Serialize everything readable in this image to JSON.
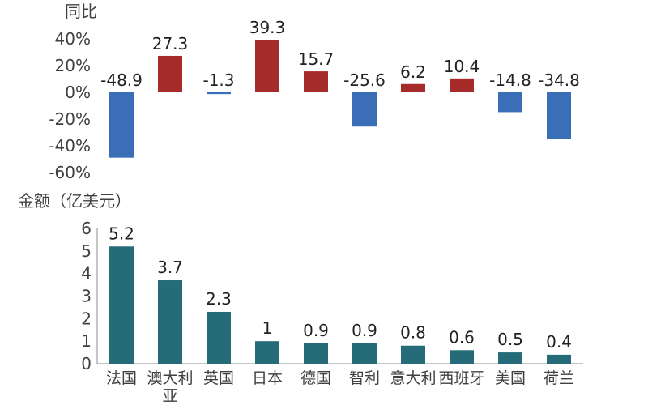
{
  "chart_data": [
    {
      "type": "bar",
      "ylabel": "同比",
      "categories": [
        "法国",
        "澳大利亚",
        "英国",
        "日本",
        "德国",
        "智利",
        "意大利",
        "西班牙",
        "美国",
        "荷兰"
      ],
      "values": [
        -48.9,
        27.3,
        -1.3,
        39.3,
        15.7,
        -25.6,
        6.2,
        10.4,
        -14.8,
        -34.8
      ],
      "value_labels": [
        "-48.9",
        "27.3",
        "-1.3",
        "39.3",
        "15.7",
        "-25.6",
        "6.2",
        "10.4",
        "-14.8",
        "-34.8"
      ],
      "ylim": [
        -60,
        40
      ],
      "y_ticks": [
        40,
        20,
        0,
        -20,
        -40,
        -60
      ],
      "y_tick_labels": [
        "40%",
        "20%",
        "0%",
        "-20%",
        "-40%",
        "-60%"
      ],
      "colors": {
        "positive": "#a62b2b",
        "negative": "#3a6fb7"
      },
      "grid": false
    },
    {
      "type": "bar",
      "ylabel": "金额（亿美元）",
      "categories": [
        "法国",
        "澳大利亚",
        "英国",
        "日本",
        "德国",
        "智利",
        "意大利",
        "西班牙",
        "美国",
        "荷兰"
      ],
      "values": [
        5.2,
        3.7,
        2.3,
        1,
        0.9,
        0.9,
        0.8,
        0.6,
        0.5,
        0.4
      ],
      "value_labels": [
        "5.2",
        "3.7",
        "2.3",
        "1",
        "0.9",
        "0.9",
        "0.8",
        "0.6",
        "0.5",
        "0.4"
      ],
      "ylim": [
        0,
        6
      ],
      "y_ticks": [
        0,
        1,
        2,
        3,
        4,
        5,
        6
      ],
      "y_tick_labels": [
        "0",
        "1",
        "2",
        "3",
        "4",
        "5",
        "6"
      ],
      "colors": {
        "bar": "#256b78"
      },
      "grid": false
    }
  ]
}
